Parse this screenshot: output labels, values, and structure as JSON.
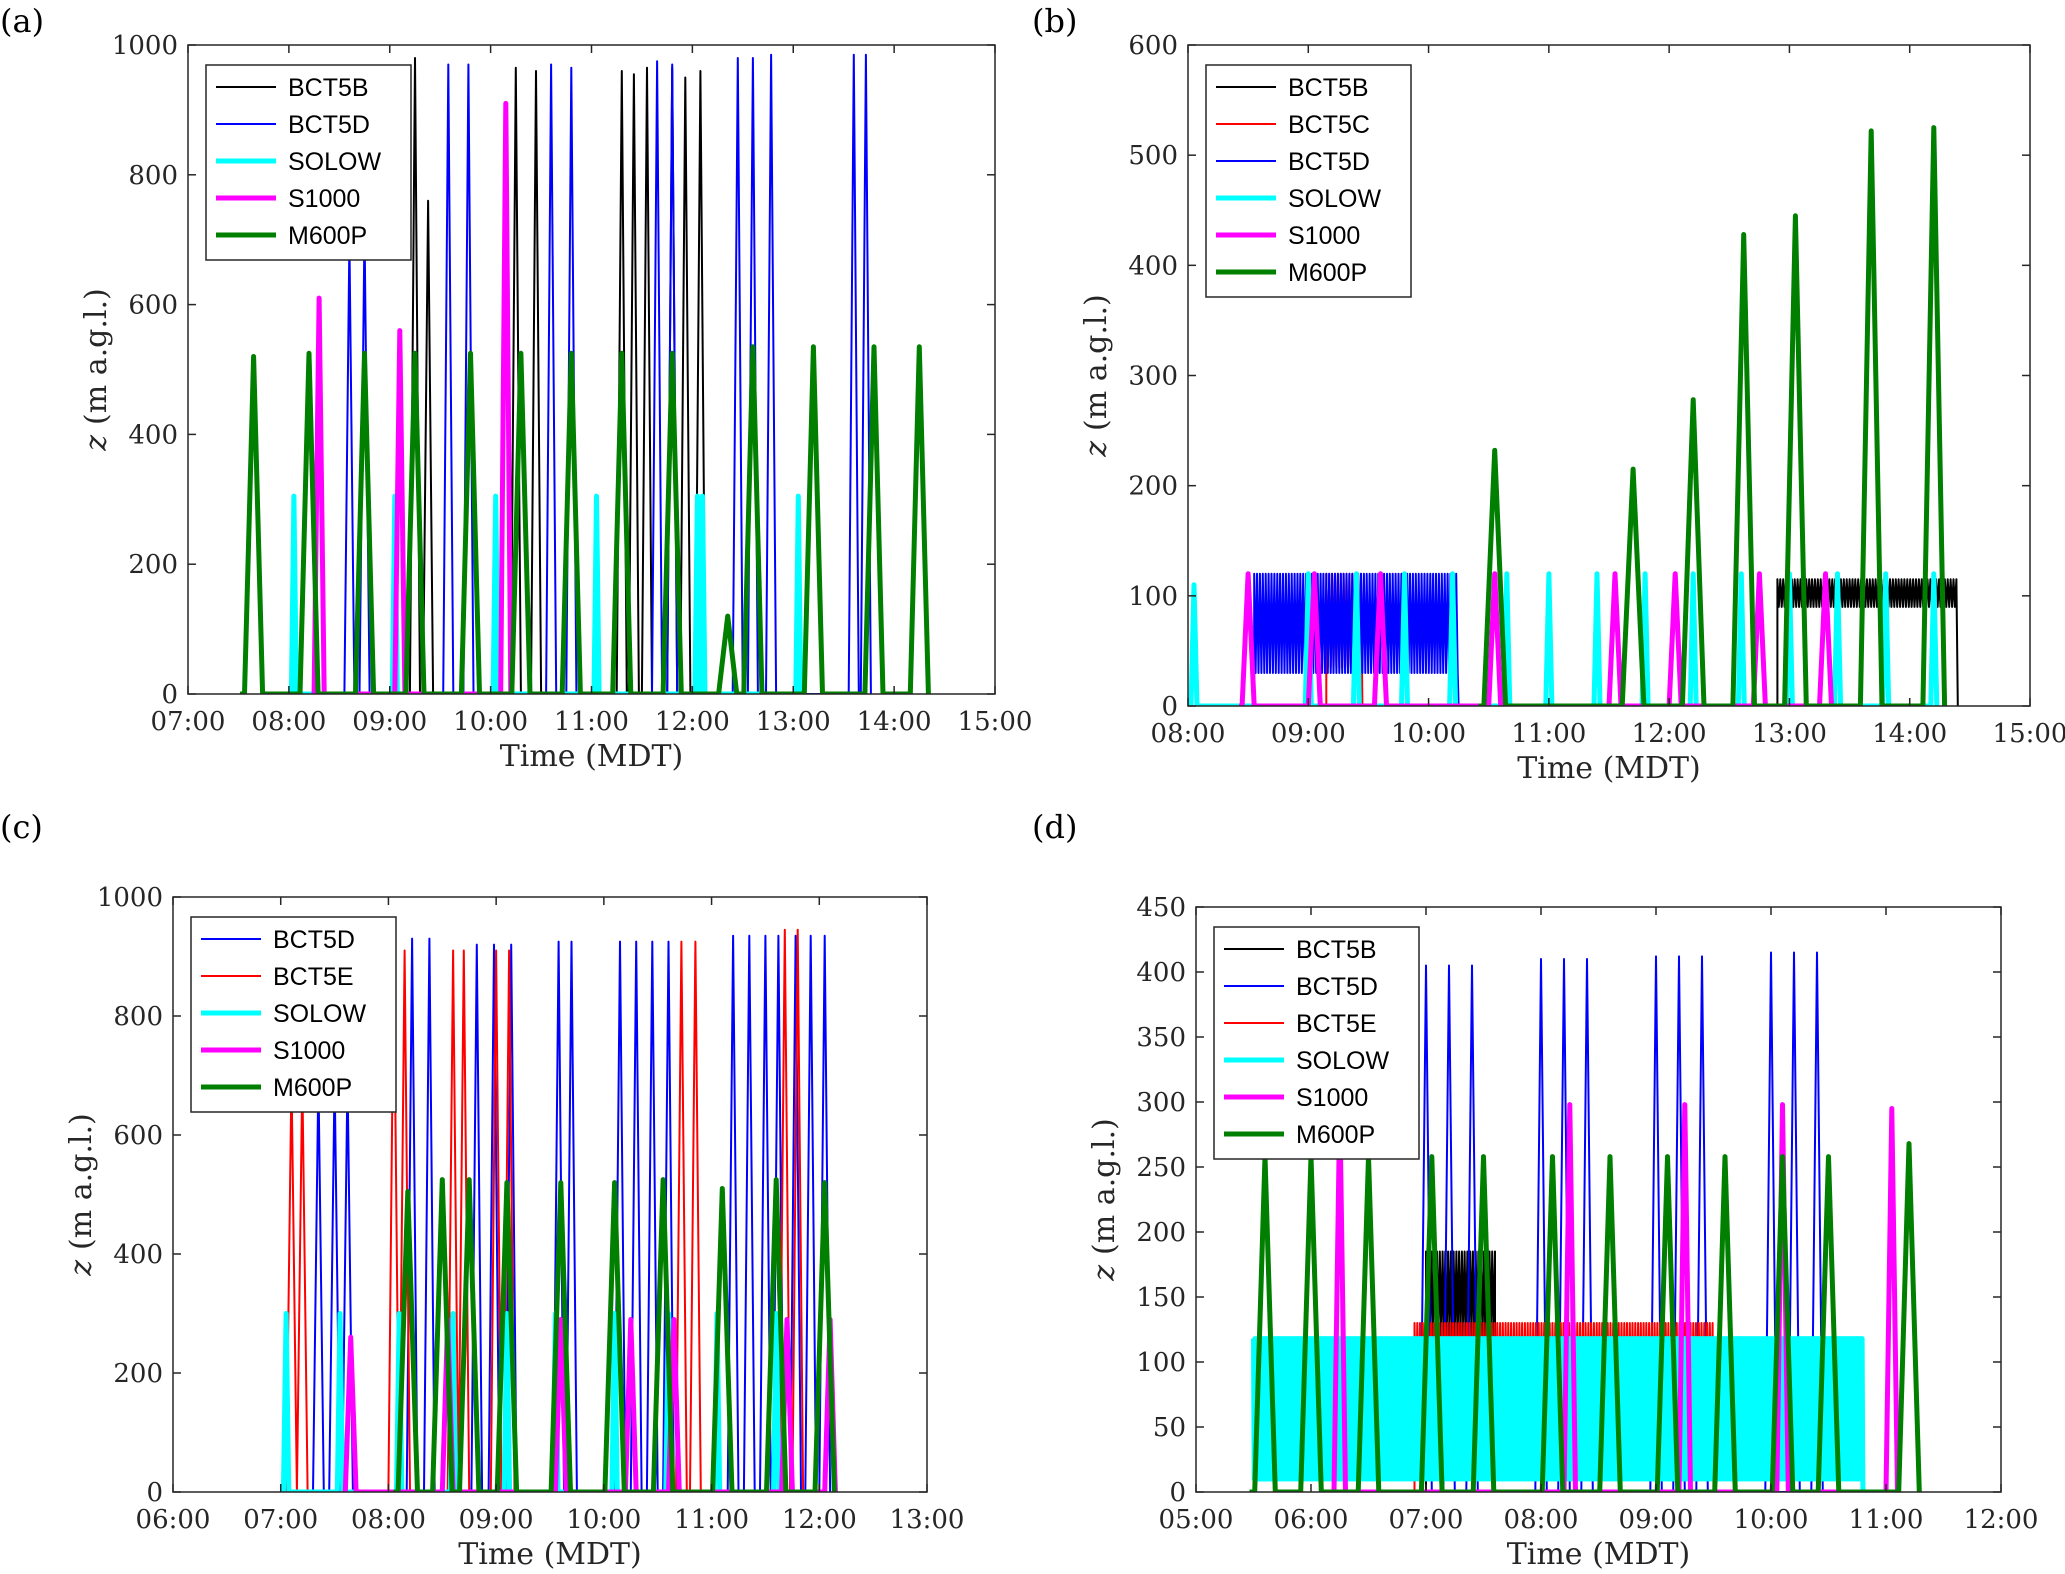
{
  "panels": [
    {
      "letter": "(a)",
      "xlabel": "Time (MDT)",
      "ylabel_var": "z",
      "ylabel_unit": "(m a.g.l.)",
      "xlim": [
        7.0,
        15.0
      ],
      "ylim": [
        0,
        1000
      ],
      "xticks": [
        "07:00",
        "08:00",
        "09:00",
        "10:00",
        "11:00",
        "12:00",
        "13:00",
        "14:00",
        "15:00"
      ],
      "yticks": [
        "0",
        "200",
        "400",
        "600",
        "800",
        "1000"
      ],
      "legend": [
        "BCT5B",
        "BCT5D",
        "SOLOW",
        "S1000",
        "M600P"
      ]
    },
    {
      "letter": "(b)",
      "xlabel": "Time (MDT)",
      "ylabel_var": "z",
      "ylabel_unit": "(m a.g.l.)",
      "xlim": [
        8.0,
        15.0
      ],
      "ylim": [
        0,
        600
      ],
      "xticks": [
        "08:00",
        "09:00",
        "10:00",
        "11:00",
        "12:00",
        "13:00",
        "14:00",
        "15:00"
      ],
      "yticks": [
        "0",
        "100",
        "200",
        "300",
        "400",
        "500",
        "600"
      ],
      "legend": [
        "BCT5B",
        "BCT5C",
        "BCT5D",
        "SOLOW",
        "S1000",
        "M600P"
      ]
    },
    {
      "letter": "(c)",
      "xlabel": "Time (MDT)",
      "ylabel_var": "z",
      "ylabel_unit": "(m a.g.l.)",
      "xlim": [
        6.0,
        13.0
      ],
      "ylim": [
        0,
        1000
      ],
      "xticks": [
        "06:00",
        "07:00",
        "08:00",
        "09:00",
        "10:00",
        "11:00",
        "12:00",
        "13:00"
      ],
      "yticks": [
        "0",
        "200",
        "400",
        "600",
        "800",
        "1000"
      ],
      "legend": [
        "BCT5D",
        "BCT5E",
        "SOLOW",
        "S1000",
        "M600P"
      ]
    },
    {
      "letter": "(d)",
      "xlabel": "Time (MDT)",
      "ylabel_var": "z",
      "ylabel_unit": "(m a.g.l.)",
      "xlim": [
        5.0,
        12.0
      ],
      "ylim": [
        0,
        450
      ],
      "xticks": [
        "05:00",
        "06:00",
        "07:00",
        "08:00",
        "09:00",
        "10:00",
        "11:00",
        "12:00"
      ],
      "yticks": [
        "0",
        "50",
        "100",
        "150",
        "200",
        "250",
        "300",
        "350",
        "400",
        "450"
      ],
      "legend": [
        "BCT5B",
        "BCT5D",
        "BCT5E",
        "SOLOW",
        "S1000",
        "M600P"
      ]
    }
  ],
  "colors": {
    "BCT5B": "#000000",
    "BCT5C": "#ff0000",
    "BCT5D": "#0000ff",
    "BCT5E": "#ff0000",
    "SOLOW": "#00ffff",
    "S1000": "#ff00ff",
    "M600P": "#007f00"
  },
  "chart_data": [
    {
      "type": "line",
      "panel": "(a)",
      "x_units": "hours (MDT)",
      "xlim": [
        7.0,
        15.0
      ],
      "ylim": [
        0,
        1000
      ],
      "grid": false,
      "legend_position": "top-left",
      "series": [
        {
          "name": "BCT5B",
          "peaks": [
            [
              9.25,
              980
            ],
            [
              9.38,
              760
            ],
            [
              10.25,
              965
            ],
            [
              10.45,
              960
            ],
            [
              11.3,
              960
            ],
            [
              11.42,
              955
            ],
            [
              11.55,
              965
            ],
            [
              11.8,
              965
            ],
            [
              11.93,
              950
            ],
            [
              12.08,
              960
            ]
          ]
        },
        {
          "name": "BCT5D",
          "peaks": [
            [
              8.6,
              700
            ],
            [
              8.75,
              720
            ],
            [
              9.58,
              970
            ],
            [
              9.78,
              970
            ],
            [
              10.6,
              970
            ],
            [
              10.8,
              965
            ],
            [
              11.65,
              975
            ],
            [
              11.8,
              970
            ],
            [
              12.45,
              980
            ],
            [
              12.6,
              980
            ],
            [
              12.78,
              985
            ],
            [
              13.6,
              985
            ],
            [
              13.72,
              985
            ]
          ]
        },
        {
          "name": "SOLOW",
          "peaks": [
            [
              8.05,
              305
            ],
            [
              9.05,
              305
            ],
            [
              10.05,
              305
            ],
            [
              11.05,
              305
            ],
            [
              12.05,
              305
            ],
            [
              12.1,
              305
            ],
            [
              13.05,
              305
            ]
          ]
        },
        {
          "name": "S1000",
          "peaks": [
            [
              8.3,
              610
            ],
            [
              9.1,
              560
            ],
            [
              10.15,
              910
            ]
          ]
        },
        {
          "name": "M600P",
          "peaks": [
            [
              7.65,
              520
            ],
            [
              8.2,
              525
            ],
            [
              8.75,
              525
            ],
            [
              9.25,
              525
            ],
            [
              9.8,
              525
            ],
            [
              10.3,
              525
            ],
            [
              10.8,
              525
            ],
            [
              11.3,
              525
            ],
            [
              11.8,
              525
            ],
            [
              12.35,
              120
            ],
            [
              12.6,
              535
            ],
            [
              13.2,
              535
            ],
            [
              13.8,
              535
            ],
            [
              14.25,
              535
            ]
          ]
        }
      ]
    },
    {
      "type": "line",
      "panel": "(b)",
      "x_units": "hours (MDT)",
      "xlim": [
        8.0,
        15.0
      ],
      "ylim": [
        0,
        600
      ],
      "grid": false,
      "legend_position": "top-left",
      "series": [
        {
          "name": "BCT5B",
          "oscillation": {
            "start": 12.9,
            "end": 14.4,
            "low": 90,
            "high": 115
          }
        },
        {
          "name": "BCT5C",
          "oscillation": {
            "start": 9.15,
            "end": 9.45,
            "low": 35,
            "high": 120
          }
        },
        {
          "name": "BCT5D",
          "oscillation": {
            "start": 8.55,
            "end": 10.25,
            "low": 30,
            "high": 120
          }
        },
        {
          "name": "SOLOW",
          "peaks": [
            [
              8.05,
              110
            ],
            [
              9.0,
              120
            ],
            [
              9.4,
              120
            ],
            [
              9.8,
              120
            ],
            [
              10.2,
              120
            ],
            [
              10.65,
              120
            ],
            [
              11.0,
              120
            ],
            [
              11.4,
              120
            ],
            [
              11.8,
              120
            ],
            [
              12.2,
              120
            ],
            [
              12.6,
              120
            ],
            [
              13.0,
              120
            ],
            [
              13.4,
              120
            ],
            [
              13.8,
              120
            ],
            [
              14.2,
              120
            ]
          ]
        },
        {
          "name": "S1000",
          "peaks": [
            [
              8.5,
              120
            ],
            [
              9.05,
              120
            ],
            [
              9.6,
              120
            ],
            [
              10.55,
              120
            ],
            [
              11.55,
              120
            ],
            [
              12.05,
              120
            ],
            [
              12.75,
              120
            ],
            [
              13.3,
              120
            ]
          ]
        },
        {
          "name": "M600P",
          "peaks": [
            [
              10.55,
              232
            ],
            [
              11.7,
              215
            ],
            [
              12.2,
              278
            ],
            [
              12.62,
              428
            ],
            [
              13.05,
              445
            ],
            [
              13.68,
              522
            ],
            [
              14.2,
              525
            ]
          ]
        }
      ]
    },
    {
      "type": "line",
      "panel": "(c)",
      "x_units": "hours (MDT)",
      "xlim": [
        6.0,
        13.0
      ],
      "ylim": [
        0,
        1000
      ],
      "grid": false,
      "legend_position": "top-left",
      "series": [
        {
          "name": "BCT5D",
          "peaks": [
            [
              7.35,
              700
            ],
            [
              7.5,
              700
            ],
            [
              7.62,
              700
            ],
            [
              8.22,
              930
            ],
            [
              8.38,
              930
            ],
            [
              8.82,
              920
            ],
            [
              8.98,
              920
            ],
            [
              9.14,
              920
            ],
            [
              9.58,
              925
            ],
            [
              9.7,
              925
            ],
            [
              10.15,
              925
            ],
            [
              10.3,
              925
            ],
            [
              10.45,
              925
            ],
            [
              10.6,
              925
            ],
            [
              11.2,
              935
            ],
            [
              11.35,
              935
            ],
            [
              11.5,
              935
            ],
            [
              11.62,
              935
            ],
            [
              11.78,
              935
            ],
            [
              11.92,
              935
            ],
            [
              12.05,
              935
            ]
          ]
        },
        {
          "name": "BCT5E",
          "peaks": [
            [
              7.1,
              700
            ],
            [
              7.2,
              700
            ],
            [
              8.05,
              910
            ],
            [
              8.15,
              910
            ],
            [
              8.6,
              910
            ],
            [
              8.7,
              910
            ],
            [
              9.0,
              910
            ],
            [
              9.12,
              910
            ],
            [
              10.72,
              925
            ],
            [
              10.85,
              925
            ],
            [
              11.68,
              945
            ],
            [
              11.8,
              945
            ]
          ]
        },
        {
          "name": "SOLOW",
          "peaks": [
            [
              7.05,
              300
            ],
            [
              7.55,
              300
            ],
            [
              8.1,
              300
            ],
            [
              8.6,
              300
            ],
            [
              9.1,
              300
            ],
            [
              9.55,
              300
            ],
            [
              10.1,
              300
            ],
            [
              10.6,
              300
            ],
            [
              11.05,
              300
            ],
            [
              11.6,
              300
            ]
          ]
        },
        {
          "name": "S1000",
          "peaks": [
            [
              7.65,
              260
            ],
            [
              8.55,
              290
            ],
            [
              9.6,
              290
            ],
            [
              10.25,
              290
            ],
            [
              10.65,
              290
            ],
            [
              11.7,
              290
            ],
            [
              12.1,
              290
            ]
          ]
        },
        {
          "name": "M600P",
          "peaks": [
            [
              8.18,
              505
            ],
            [
              8.5,
              525
            ],
            [
              8.75,
              525
            ],
            [
              9.1,
              520
            ],
            [
              9.6,
              520
            ],
            [
              10.1,
              520
            ],
            [
              10.55,
              525
            ],
            [
              11.1,
              510
            ],
            [
              11.6,
              525
            ],
            [
              12.05,
              520
            ]
          ]
        }
      ]
    },
    {
      "type": "line",
      "panel": "(d)",
      "x_units": "hours (MDT)",
      "xlim": [
        5.0,
        12.0
      ],
      "ylim": [
        0,
        450
      ],
      "grid": false,
      "legend_position": "top-left",
      "series": [
        {
          "name": "BCT5B",
          "oscillation": {
            "start": 7.0,
            "end": 7.6,
            "low": 120,
            "high": 185
          }
        },
        {
          "name": "BCT5D",
          "peaks": [
            [
              7.0,
              405
            ],
            [
              7.2,
              405
            ],
            [
              7.4,
              405
            ],
            [
              8.0,
              410
            ],
            [
              8.2,
              410
            ],
            [
              8.4,
              410
            ],
            [
              9.0,
              412
            ],
            [
              9.2,
              412
            ],
            [
              9.4,
              412
            ],
            [
              10.0,
              415
            ],
            [
              10.2,
              415
            ],
            [
              10.4,
              415
            ]
          ]
        },
        {
          "name": "BCT5E",
          "oscillation": {
            "start": 6.9,
            "end": 9.5,
            "low": 60,
            "high": 130
          }
        },
        {
          "name": "SOLOW",
          "band": {
            "start": 5.5,
            "end": 10.8,
            "low": 10,
            "high": 118
          }
        },
        {
          "name": "S1000",
          "peaks": [
            [
              6.25,
              298
            ],
            [
              8.25,
              298
            ],
            [
              9.25,
              298
            ],
            [
              10.1,
              298
            ],
            [
              11.05,
              295
            ]
          ]
        },
        {
          "name": "M600P",
          "peaks": [
            [
              5.6,
              258
            ],
            [
              6.0,
              258
            ],
            [
              6.5,
              258
            ],
            [
              7.05,
              258
            ],
            [
              7.5,
              258
            ],
            [
              8.1,
              258
            ],
            [
              8.6,
              258
            ],
            [
              9.1,
              258
            ],
            [
              9.6,
              258
            ],
            [
              10.1,
              258
            ],
            [
              10.5,
              258
            ],
            [
              11.2,
              268
            ]
          ]
        }
      ]
    }
  ]
}
